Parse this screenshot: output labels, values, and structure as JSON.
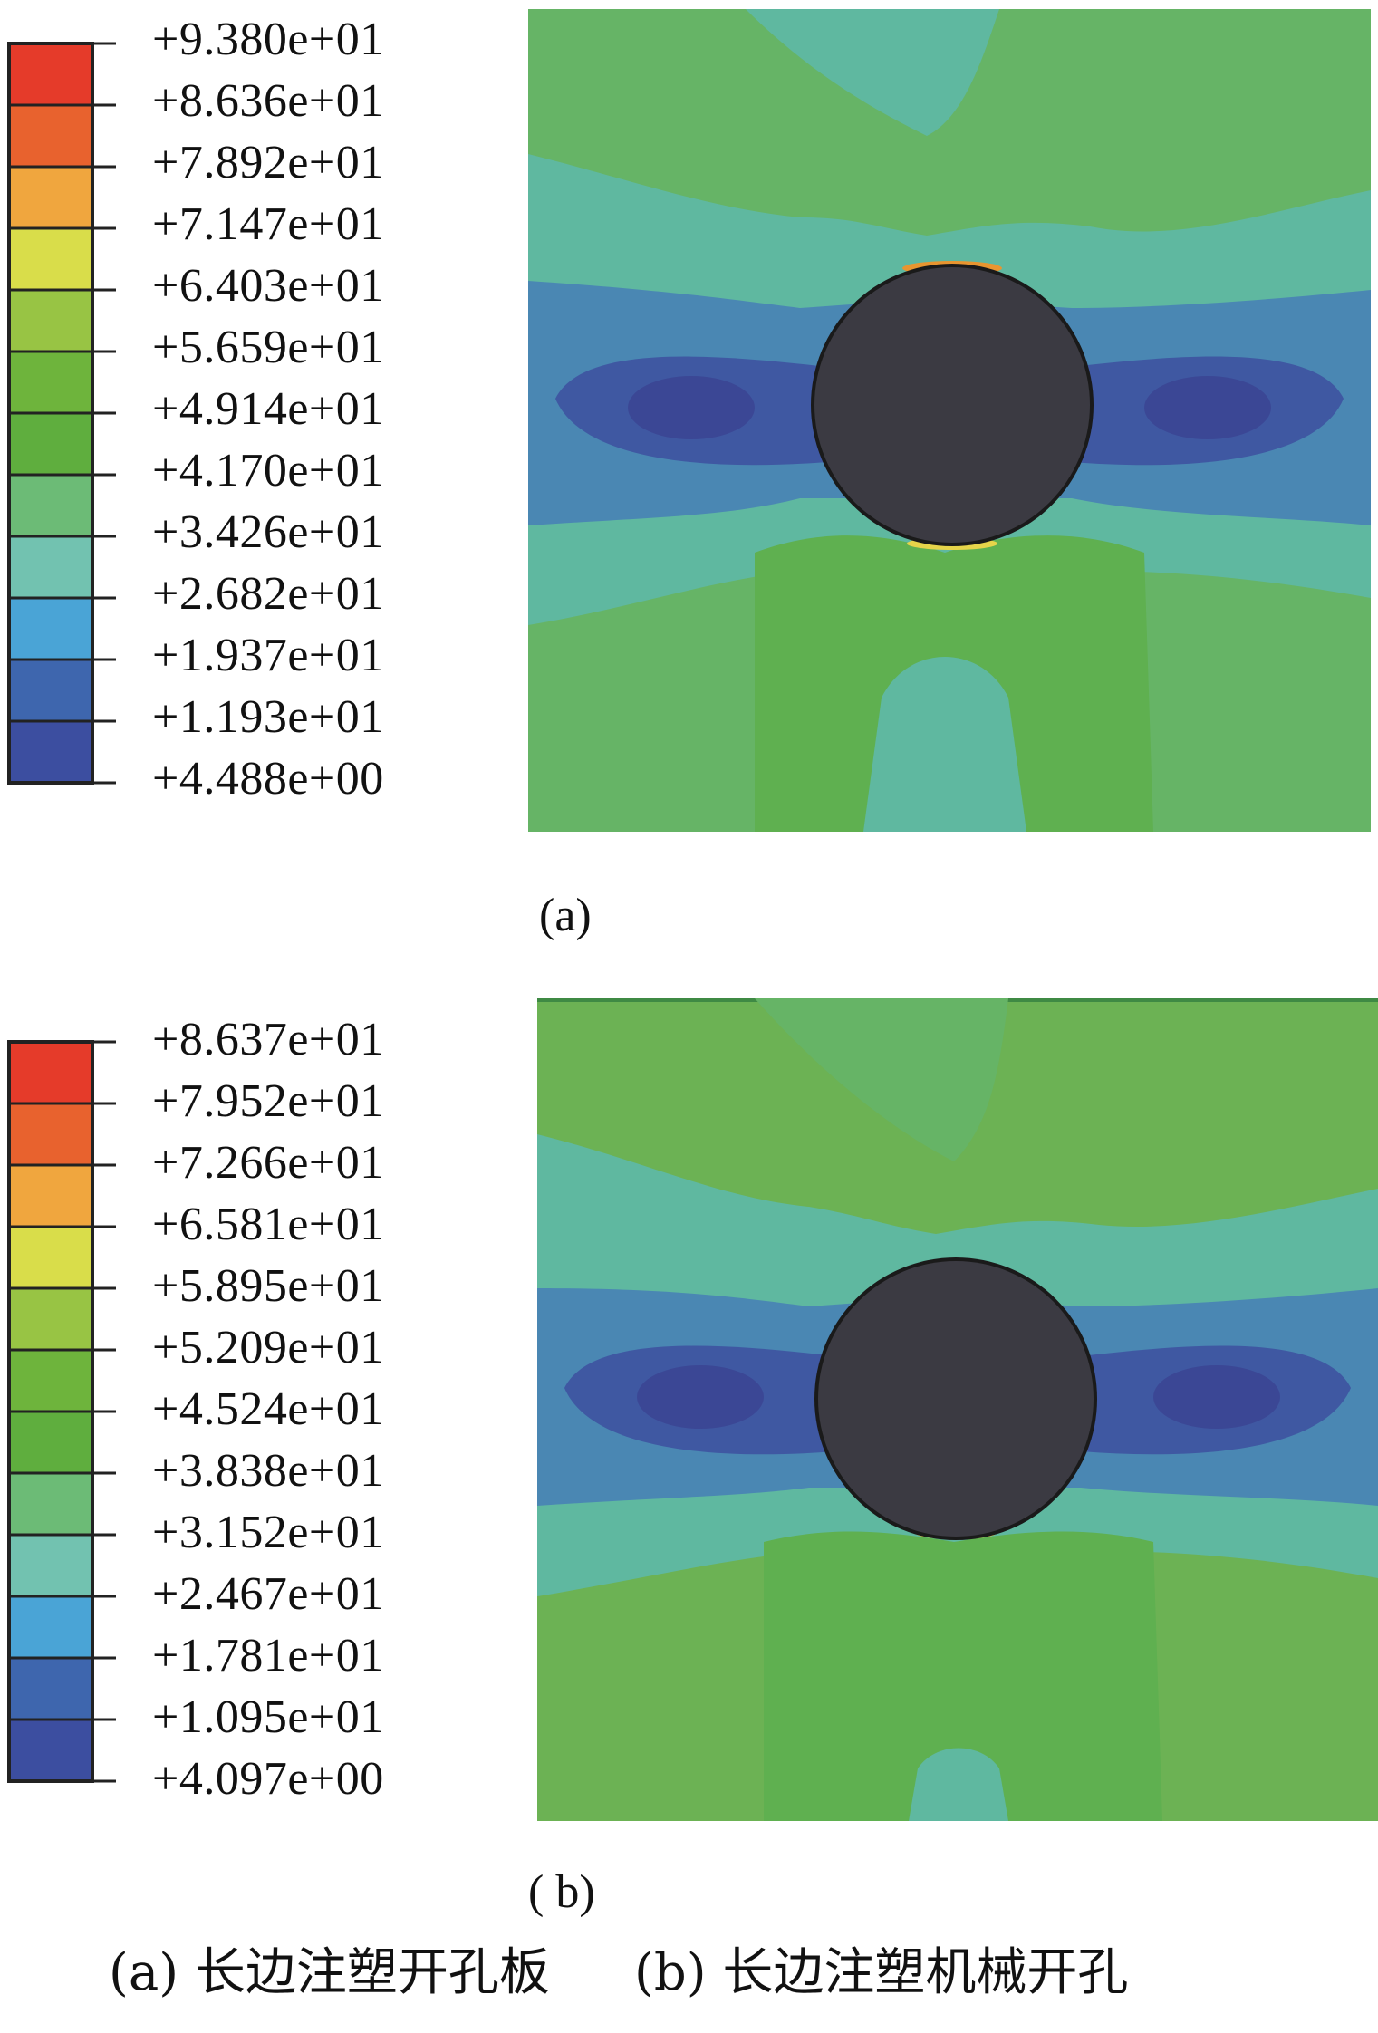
{
  "figures": [
    {
      "panel_label": "(a)",
      "legend_values": [
        "+9.380e+01",
        "+8.636e+01",
        "+7.892e+01",
        "+7.147e+01",
        "+6.403e+01",
        "+5.659e+01",
        "+4.914e+01",
        "+4.170e+01",
        "+3.426e+01",
        "+2.682e+01",
        "+1.937e+01",
        "+1.193e+01",
        "+4.488e+00"
      ]
    },
    {
      "panel_label": "( b)",
      "legend_values": [
        "+8.637e+01",
        "+7.952e+01",
        "+7.266e+01",
        "+6.581e+01",
        "+5.895e+01",
        "+5.209e+01",
        "+4.524e+01",
        "+3.838e+01",
        "+3.152e+01",
        "+2.467e+01",
        "+1.781e+01",
        "+1.095e+01",
        "+4.097e+00"
      ]
    }
  ],
  "legend_colors": [
    "#e53b2a",
    "#e8622e",
    "#f0a63e",
    "#d9dd4a",
    "#98c444",
    "#6eb43c",
    "#5fae3e",
    "#6cbb76",
    "#72c2b0",
    "#4aa4d6",
    "#3e66ae",
    "#3c4ea0"
  ],
  "hole_color": "#3b3a42",
  "caption": {
    "left": "(a) 长边注塑开孔板",
    "right": "(b) 长边注塑机械开孔"
  }
}
